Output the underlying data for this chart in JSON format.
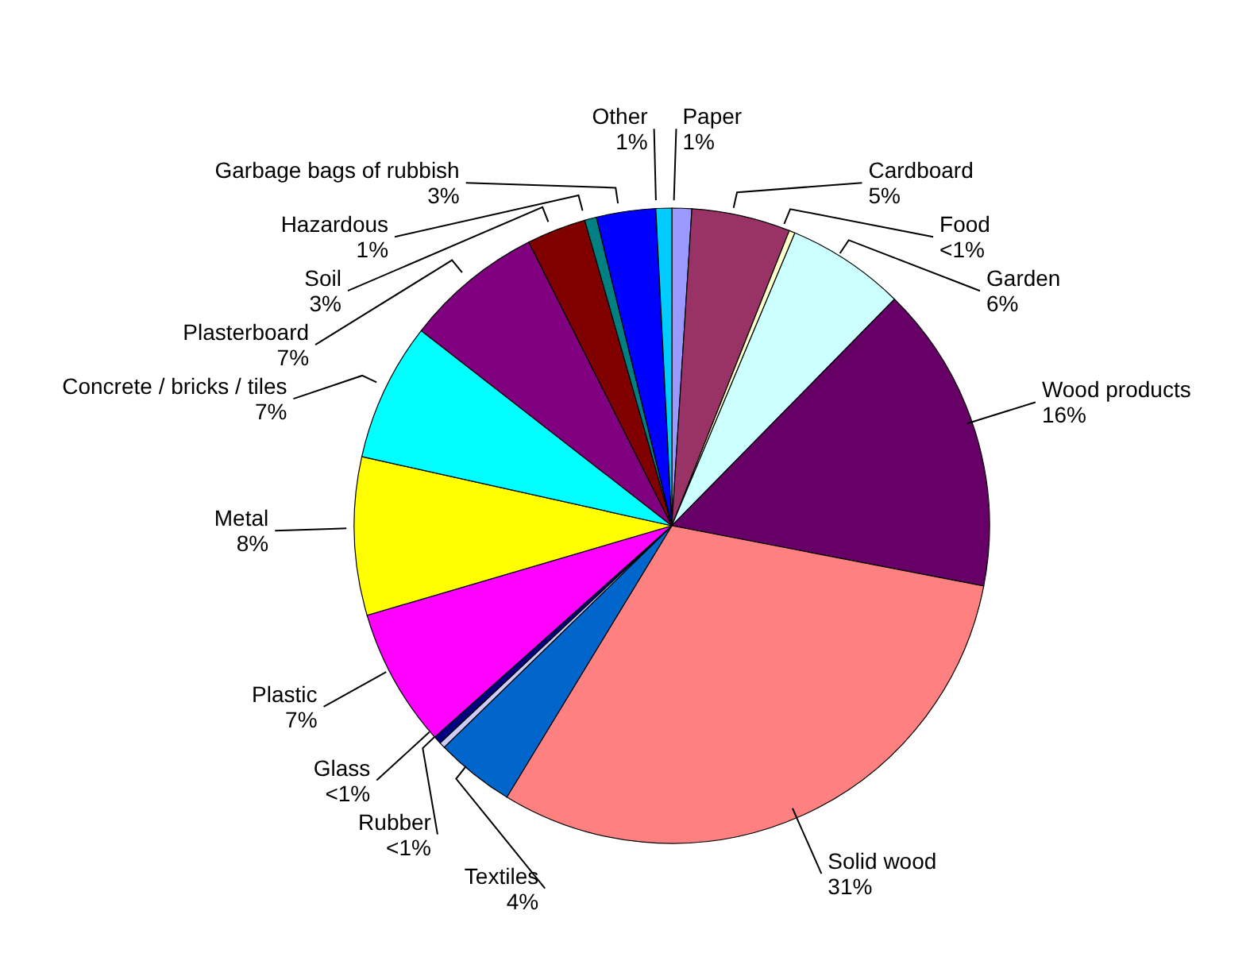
{
  "chart_data": {
    "type": "pie",
    "categories": [
      "Paper",
      "Cardboard",
      "Food",
      "Garden",
      "Wood products",
      "Solid wood",
      "Textiles",
      "Rubber",
      "Glass",
      "Plastic",
      "Metal",
      "Concrete / bricks / tiles",
      "Plasterboard",
      "Soil",
      "Hazardous",
      "Garbage bags of rubbish",
      "Other"
    ],
    "values": [
      1,
      5,
      0.3,
      6,
      15.6,
      30.5,
      4,
      0.3,
      0.4,
      7,
      8,
      7,
      7,
      3,
      0.6,
      3,
      0.8
    ],
    "value_labels": [
      "1%",
      "5%",
      "<1%",
      "6%",
      "16%",
      "31%",
      "4%",
      "<1%",
      "<1%",
      "7%",
      "8%",
      "7%",
      "7%",
      "3%",
      "1%",
      "3%",
      "1%"
    ],
    "colors": [
      "#9999ff",
      "#993366",
      "#ffffcc",
      "#ccffff",
      "#660066",
      "#ff8080",
      "#0066cc",
      "#ccccff",
      "#000080",
      "#ff00ff",
      "#ffff00",
      "#00ffff",
      "#800080",
      "#800000",
      "#008080",
      "#0000ff",
      "#00ccff"
    ]
  }
}
